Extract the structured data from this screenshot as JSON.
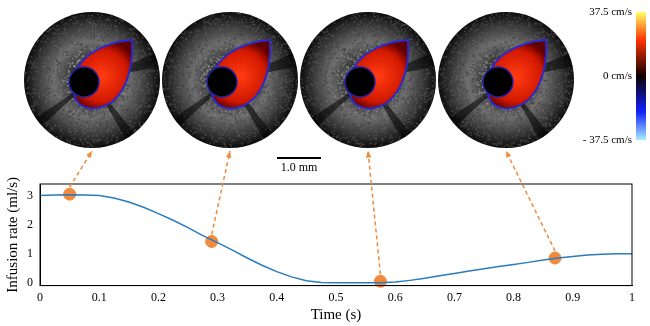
{
  "chart_data": {
    "type": "line",
    "x_label": "Time (s)",
    "y_label": "Infusion rate (ml/s)",
    "x": [
      0,
      0.025,
      0.05,
      0.075,
      0.1,
      0.125,
      0.15,
      0.175,
      0.2,
      0.225,
      0.25,
      0.275,
      0.3,
      0.325,
      0.35,
      0.375,
      0.4,
      0.425,
      0.45,
      0.475,
      0.5,
      0.525,
      0.55,
      0.575,
      0.6,
      0.625,
      0.65,
      0.675,
      0.7,
      0.725,
      0.75,
      0.775,
      0.8,
      0.825,
      0.85,
      0.875,
      0.9,
      0.925,
      0.95,
      0.975,
      1.0
    ],
    "values": [
      3.0,
      3.02,
      3.03,
      3.02,
      3.0,
      2.92,
      2.78,
      2.6,
      2.38,
      2.15,
      1.9,
      1.62,
      1.38,
      1.12,
      0.85,
      0.6,
      0.38,
      0.2,
      0.07,
      0.01,
      0,
      0,
      0,
      0,
      0.02,
      0.08,
      0.15,
      0.24,
      0.32,
      0.4,
      0.48,
      0.56,
      0.63,
      0.7,
      0.78,
      0.85,
      0.9,
      0.95,
      0.98,
      1.0,
      1.0
    ],
    "color": "#2b7bbd",
    "highlights": {
      "x": [
        0.05,
        0.29,
        0.575,
        0.87
      ],
      "values": [
        3.05,
        1.42,
        0.05,
        0.85
      ],
      "color": "#f08a3c",
      "marker": "circle"
    },
    "xlim": [
      0,
      1
    ],
    "xticks": [
      0,
      0.1,
      0.2,
      0.3,
      0.4,
      0.5,
      0.6,
      0.7,
      0.8,
      0.9,
      1
    ],
    "ylim": [
      -0.1,
      3.4
    ],
    "yticks": [
      0,
      1,
      2,
      3
    ],
    "grid": false,
    "colorbar": {
      "range": [
        -37.5,
        37.5
      ],
      "ticks": [
        {
          "value": 37.5,
          "label": "37.5 cm/s"
        },
        {
          "value": 0,
          "label": "0 cm/s"
        },
        {
          "value": -37.5,
          "label": "- 37.5 cm/s"
        }
      ]
    },
    "scale_bar": "1.0 mm"
  }
}
